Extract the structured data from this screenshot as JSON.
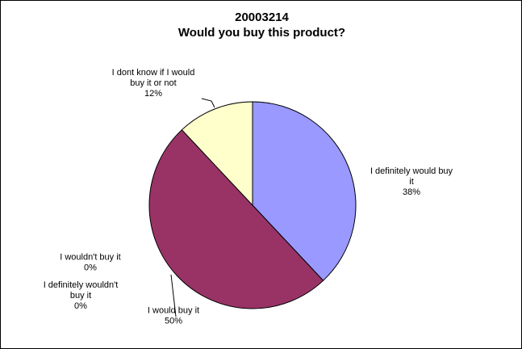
{
  "chart_data": {
    "type": "pie",
    "title": "20003214",
    "subtitle": "Would you buy this product?",
    "slices": [
      {
        "name": "I definitely would buy it",
        "value": 38,
        "label_lines": [
          "I definitely would buy",
          "it"
        ],
        "pct_label": "38%",
        "color": "#9999ff"
      },
      {
        "name": "I would buy it",
        "value": 50,
        "label_lines": [
          "I would buy it"
        ],
        "pct_label": "50%",
        "color": "#993366"
      },
      {
        "name": "I wouldn't buy it",
        "value": 0,
        "label_lines": [
          "I wouldn't buy it"
        ],
        "pct_label": "0%",
        "color": "#ffffcc"
      },
      {
        "name": "I definitely wouldn't buy it",
        "value": 0,
        "label_lines": [
          "I definitely wouldn't",
          "buy it"
        ],
        "pct_label": "0%",
        "color": "#ccffff"
      },
      {
        "name": "I dont know if I would buy it or not",
        "value": 12,
        "label_lines": [
          "I dont know if I would",
          "buy it or not"
        ],
        "pct_label": "12%",
        "color": "#ffffcc"
      }
    ],
    "legend": "none",
    "start_angle": "12 o'clock",
    "direction": "clockwise"
  }
}
